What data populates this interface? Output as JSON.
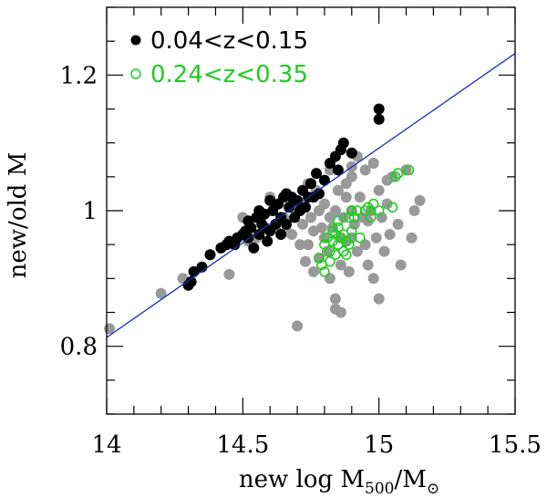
{
  "chart_data": {
    "type": "scatter",
    "title": "",
    "xlabel": {
      "main": "new log M",
      "sub": "500",
      "tail": "/M",
      "tail_sub": "⊙"
    },
    "ylabel": "new/old M",
    "xlim": [
      14.0,
      15.5
    ],
    "ylim": [
      0.7,
      1.3
    ],
    "xticks": [
      {
        "value": 14.0,
        "label": "14"
      },
      {
        "value": 14.5,
        "label": "14.5"
      },
      {
        "value": 15.0,
        "label": "15"
      },
      {
        "value": 15.5,
        "label": "15.5"
      }
    ],
    "yticks": [
      {
        "value": 0.8,
        "label": "0.8"
      },
      {
        "value": 1.0,
        "label": "1"
      },
      {
        "value": 1.2,
        "label": "1.2"
      }
    ],
    "minor_x_step": 0.1,
    "minor_y_step": 0.05,
    "grid": false,
    "legend_position": "top-left",
    "fit_line": {
      "color": "#1f2fae",
      "x": [
        14.0,
        15.5
      ],
      "y": [
        0.813,
        1.232
      ]
    },
    "series": [
      {
        "color": "#999999",
        "style": "filled",
        "points": [
          [
            14.01,
            0.826
          ],
          [
            14.2,
            0.878
          ],
          [
            14.28,
            0.9
          ],
          [
            14.45,
            0.906
          ],
          [
            14.5,
            0.99
          ],
          [
            14.52,
            0.955
          ],
          [
            14.55,
            0.96
          ],
          [
            14.6,
            1.02
          ],
          [
            14.62,
            0.975
          ],
          [
            14.65,
            0.99
          ],
          [
            14.68,
            0.965
          ],
          [
            14.7,
            1.0
          ],
          [
            14.72,
            0.98
          ],
          [
            14.74,
            0.95
          ],
          [
            14.74,
            1.04
          ],
          [
            14.75,
            0.99
          ],
          [
            14.76,
            0.97
          ],
          [
            14.77,
            1.03
          ],
          [
            14.78,
            1.0
          ],
          [
            14.79,
            0.975
          ],
          [
            14.8,
            0.96
          ],
          [
            14.8,
            1.01
          ],
          [
            14.81,
            0.94
          ],
          [
            14.82,
            0.99
          ],
          [
            14.82,
            0.9
          ],
          [
            14.83,
            0.975
          ],
          [
            14.84,
            1.0
          ],
          [
            14.84,
            0.87
          ],
          [
            14.85,
            1.03
          ],
          [
            14.86,
            0.96
          ],
          [
            14.86,
            0.92
          ],
          [
            14.87,
            0.99
          ],
          [
            14.88,
            1.02
          ],
          [
            14.88,
            0.955
          ],
          [
            14.89,
            0.91
          ],
          [
            14.9,
            1.0
          ],
          [
            14.9,
            0.96
          ],
          [
            14.9,
            1.05
          ],
          [
            14.91,
            0.98
          ],
          [
            14.92,
            1.08
          ],
          [
            14.92,
            0.94
          ],
          [
            14.93,
            1.02
          ],
          [
            14.94,
            0.99
          ],
          [
            14.95,
            0.95
          ],
          [
            14.95,
            1.06
          ],
          [
            14.96,
            0.92
          ],
          [
            14.97,
            1.0
          ],
          [
            14.98,
            0.9
          ],
          [
            14.99,
            0.96
          ],
          [
            15.0,
            0.87
          ],
          [
            15.0,
            1.03
          ],
          [
            15.01,
            0.99
          ],
          [
            15.02,
            0.94
          ],
          [
            15.03,
            1.01
          ],
          [
            15.04,
            0.965
          ],
          [
            15.05,
            1.05
          ],
          [
            15.07,
            0.98
          ],
          [
            15.08,
            0.92
          ],
          [
            15.1,
            1.06
          ],
          [
            15.12,
            0.96
          ],
          [
            15.13,
            1.0
          ],
          [
            15.15,
            1.015
          ],
          [
            14.9,
            1.065
          ],
          [
            14.84,
            0.855
          ],
          [
            14.86,
            0.85
          ],
          [
            14.7,
            0.83
          ],
          [
            14.78,
            0.93
          ],
          [
            14.76,
            0.91
          ],
          [
            14.73,
            0.925
          ],
          [
            14.88,
            1.04
          ],
          [
            14.98,
            1.07
          ],
          [
            15.03,
            1.045
          ],
          [
            14.96,
            0.985
          ],
          [
            14.82,
            1.06
          ],
          [
            14.68,
            1.01
          ],
          [
            14.66,
            0.97
          ],
          [
            14.71,
            0.95
          ]
        ]
      },
      {
        "name": "0.24<z<0.35",
        "color": "#22cc22",
        "style": "open",
        "points": [
          [
            14.78,
            0.93
          ],
          [
            14.79,
            0.92
          ],
          [
            14.8,
            0.95
          ],
          [
            14.8,
            0.91
          ],
          [
            14.81,
            0.96
          ],
          [
            14.82,
            0.94
          ],
          [
            14.83,
            0.97
          ],
          [
            14.83,
            0.955
          ],
          [
            14.84,
            0.935
          ],
          [
            14.84,
            0.965
          ],
          [
            14.85,
            0.95
          ],
          [
            14.85,
            0.975
          ],
          [
            14.86,
            0.96
          ],
          [
            14.87,
            0.94
          ],
          [
            14.87,
            0.965
          ],
          [
            14.88,
            0.955
          ],
          [
            14.88,
            0.935
          ],
          [
            14.89,
            0.95
          ],
          [
            14.89,
            0.99
          ],
          [
            14.9,
            1.0
          ],
          [
            14.9,
            0.97
          ],
          [
            14.91,
            0.99
          ],
          [
            14.92,
            1.0
          ],
          [
            14.93,
            0.96
          ],
          [
            14.95,
            1.0
          ],
          [
            14.96,
            1.005
          ],
          [
            14.97,
            0.99
          ],
          [
            14.98,
            1.01
          ],
          [
            15.0,
            1.0
          ],
          [
            15.05,
            1.005
          ],
          [
            15.06,
            1.05
          ],
          [
            15.07,
            1.055
          ],
          [
            15.11,
            1.06
          ],
          [
            14.85,
            0.985
          ],
          [
            14.82,
            0.925
          ]
        ]
      },
      {
        "name": "0.04<z<0.15",
        "color": "#000000",
        "style": "filled",
        "points": [
          [
            14.3,
            0.89
          ],
          [
            14.31,
            0.895
          ],
          [
            14.32,
            0.91
          ],
          [
            14.35,
            0.917
          ],
          [
            14.38,
            0.935
          ],
          [
            14.42,
            0.945
          ],
          [
            14.45,
            0.955
          ],
          [
            14.47,
            0.95
          ],
          [
            14.48,
            0.96
          ],
          [
            14.5,
            0.965
          ],
          [
            14.51,
            0.97
          ],
          [
            14.52,
            0.96
          ],
          [
            14.53,
            0.975
          ],
          [
            14.54,
            0.945
          ],
          [
            14.55,
            0.99
          ],
          [
            14.56,
            0.965
          ],
          [
            14.57,
            0.98
          ],
          [
            14.58,
            0.995
          ],
          [
            14.59,
            0.955
          ],
          [
            14.6,
            0.97
          ],
          [
            14.61,
            1.0
          ],
          [
            14.62,
            0.98
          ],
          [
            14.63,
            1.01
          ],
          [
            14.64,
            0.99
          ],
          [
            14.65,
            1.02
          ],
          [
            14.66,
            0.98
          ],
          [
            14.67,
            1.005
          ],
          [
            14.68,
            1.02
          ],
          [
            14.69,
            0.99
          ],
          [
            14.7,
            1.015
          ],
          [
            14.71,
            1.0
          ],
          [
            14.72,
            1.03
          ],
          [
            14.73,
            1.005
          ],
          [
            14.74,
            1.02
          ],
          [
            14.75,
            1.04
          ],
          [
            14.76,
            1.02
          ],
          [
            14.77,
            1.055
          ],
          [
            14.78,
            1.025
          ],
          [
            14.8,
            1.045
          ],
          [
            14.82,
            1.07
          ],
          [
            14.84,
            1.08
          ],
          [
            14.85,
            1.06
          ],
          [
            14.86,
            1.09
          ],
          [
            14.87,
            1.1
          ],
          [
            14.9,
            1.085
          ],
          [
            15.0,
            1.135
          ],
          [
            15.0,
            1.15
          ],
          [
            14.6,
            1.015
          ],
          [
            14.56,
            1.0
          ],
          [
            14.66,
            1.025
          ],
          [
            14.64,
            0.965
          ],
          [
            14.58,
            0.975
          ],
          [
            14.44,
            0.95
          ],
          [
            14.52,
            0.985
          ]
        ]
      }
    ]
  }
}
